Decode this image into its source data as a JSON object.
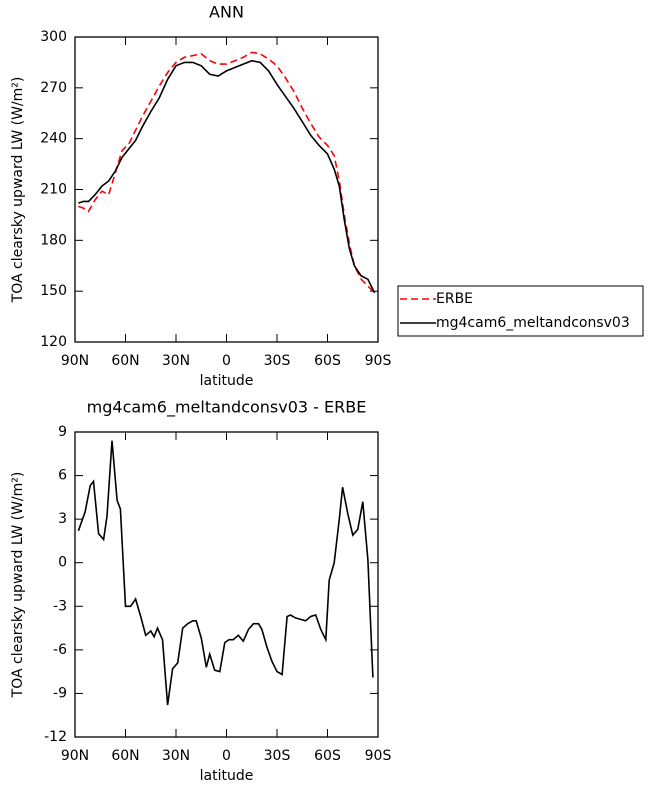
{
  "chart_data": [
    {
      "type": "line",
      "title": "ANN",
      "xlabel": "latitude",
      "ylabel": "TOA clearsky upward LW (W/m²)",
      "x": [
        88,
        85,
        82,
        78,
        74,
        70,
        66,
        62,
        58,
        54,
        50,
        45,
        40,
        35,
        30,
        25,
        20,
        15,
        10,
        5,
        0,
        -5,
        -10,
        -15,
        -20,
        -25,
        -30,
        -35,
        -40,
        -45,
        -50,
        -55,
        -60,
        -64,
        -67,
        -70,
        -73,
        -76,
        -80,
        -84,
        -88
      ],
      "series": [
        {
          "name": "ERBE",
          "color": "#ff0000",
          "style": "dashed",
          "values": [
            200,
            199,
            197,
            204,
            209,
            207,
            220,
            233,
            237,
            245,
            253,
            262,
            271,
            279,
            285,
            288,
            289,
            290,
            286,
            284,
            284,
            286,
            288,
            291,
            290,
            287,
            283,
            276,
            268,
            258,
            249,
            241,
            236,
            230,
            215,
            195,
            178,
            165,
            157,
            153,
            149
          ]
        },
        {
          "name": "mg4cam6_meltandconsv03",
          "color": "#000000",
          "style": "solid",
          "values": [
            202,
            203,
            203,
            207,
            212,
            215,
            221,
            229,
            234,
            239,
            247,
            256,
            264,
            275,
            283,
            285,
            285,
            283,
            278,
            277,
            280,
            282,
            284,
            286,
            285,
            280,
            272,
            265,
            258,
            250,
            242,
            236,
            231,
            222,
            212,
            192,
            175,
            165,
            159,
            157,
            149
          ]
        }
      ],
      "xlim": [
        90,
        -90
      ],
      "xticks": [
        {
          "value": 90,
          "label": "90N"
        },
        {
          "value": 60,
          "label": "60N"
        },
        {
          "value": 30,
          "label": "30N"
        },
        0,
        {
          "value": -30,
          "label": "30S"
        },
        {
          "value": -60,
          "label": "60S"
        },
        {
          "value": -90,
          "label": "90S"
        }
      ],
      "ylim": [
        120,
        300
      ],
      "yticks": [
        120,
        150,
        180,
        210,
        240,
        270,
        300
      ],
      "legend": "right"
    },
    {
      "type": "line",
      "title": "mg4cam6_meltandconsv03 - ERBE",
      "xlabel": "latitude",
      "ylabel": "TOA clearsky upward LW (W/m²)",
      "x": [
        88,
        84,
        81,
        79,
        76,
        73,
        71,
        68,
        65,
        63,
        60,
        57,
        54,
        51,
        48,
        45,
        43,
        41,
        38,
        35,
        32,
        29,
        26,
        23,
        20,
        18,
        15,
        12,
        10,
        7,
        4,
        1,
        -1.5,
        -4,
        -7,
        -10,
        -13,
        -16,
        -19,
        -21,
        -24,
        -27,
        -30,
        -33,
        -36,
        -38,
        -41,
        -44,
        -47,
        -50,
        -53,
        -56,
        -59,
        -61,
        -64,
        -67,
        -69,
        -72,
        -75,
        -78,
        -81,
        -84,
        -87
      ],
      "values": [
        2.2,
        3.5,
        5.3,
        5.6,
        2.0,
        1.6,
        3.2,
        8.4,
        4.3,
        3.7,
        -3.0,
        -3.0,
        -2.5,
        -3.7,
        -5.0,
        -4.7,
        -5.1,
        -4.5,
        -5.3,
        -9.8,
        -7.3,
        -6.9,
        -4.5,
        -4.2,
        -4.0,
        -4.0,
        -5.2,
        -7.2,
        -6.3,
        -7.4,
        -7.5,
        -5.5,
        -5.3,
        -5.3,
        -5.0,
        -5.4,
        -4.6,
        -4.2,
        -4.2,
        -4.6,
        -5.8,
        -6.8,
        -7.5,
        -7.7,
        -3.7,
        -3.6,
        -3.8,
        -3.9,
        -4.0,
        -3.7,
        -3.6,
        -4.6,
        -5.3,
        -1.2,
        0.0,
        3.0,
        5.2,
        3.4,
        1.9,
        2.3,
        4.2,
        0.2,
        -7.9
      ],
      "color": "#000000",
      "xlim": [
        90,
        -90
      ],
      "xticks": [
        {
          "value": 90,
          "label": "90N"
        },
        {
          "value": 60,
          "label": "60N"
        },
        {
          "value": 30,
          "label": "30N"
        },
        0,
        {
          "value": -30,
          "label": "30S"
        },
        {
          "value": -60,
          "label": "60S"
        },
        {
          "value": -90,
          "label": "90S"
        }
      ],
      "ylim": [
        -12,
        9
      ],
      "yticks": [
        -12,
        -9,
        -6,
        -3,
        0,
        3,
        6,
        9
      ]
    }
  ]
}
